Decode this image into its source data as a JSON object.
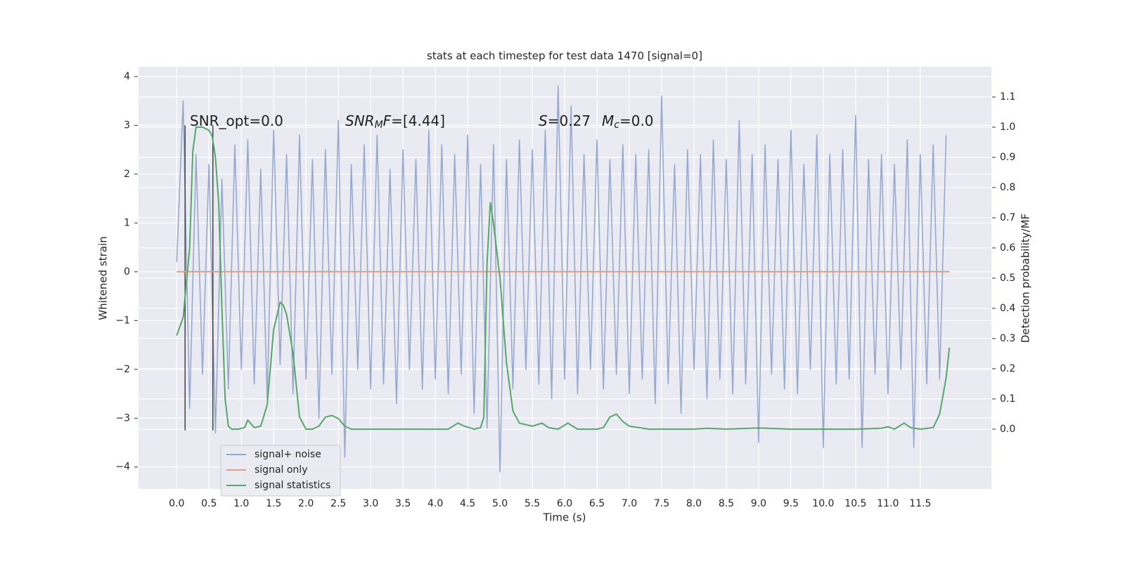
{
  "chart_data": {
    "type": "line",
    "title": "stats at each timestep for test data 1470 [signal=0]",
    "x_label": "Time (s)",
    "y_label": "Whitened strain",
    "y2_label": "Detection probability/MF",
    "xlim": [
      -0.59,
      12.6
    ],
    "ylim": [
      -4.45,
      4.2
    ],
    "y2lim": [
      -0.198,
      1.2
    ],
    "xticks": [
      {
        "value": 0,
        "label": "0.0"
      },
      0.5,
      {
        "value": 1,
        "label": "1.0"
      },
      1.5,
      {
        "value": 2,
        "label": "2.0"
      },
      2.5,
      {
        "value": 3,
        "label": "3.0"
      },
      3.5,
      {
        "value": 4,
        "label": "4.0"
      },
      4.5,
      {
        "value": 5,
        "label": "5.0"
      },
      5.5,
      {
        "value": 6,
        "label": "6.0"
      },
      6.5,
      {
        "value": 7,
        "label": "7.0"
      },
      7.5,
      {
        "value": 8,
        "label": "8.0"
      },
      8.5,
      {
        "value": 9,
        "label": "9.0"
      },
      9.5,
      {
        "value": 10,
        "label": "10.0"
      },
      10.5,
      {
        "value": 11,
        "label": "11.0"
      },
      11.5
    ],
    "yticks": [
      {
        "value": -4,
        "label": "−4"
      },
      {
        "value": -3,
        "label": "−3"
      },
      {
        "value": -2,
        "label": "−2"
      },
      {
        "value": -1,
        "label": "−1"
      },
      0,
      1,
      2,
      3,
      4
    ],
    "y2ticks": [
      {
        "value": 0,
        "label": "0.0"
      },
      0.1,
      0.2,
      0.3,
      0.4,
      0.5,
      0.6,
      0.7,
      0.8,
      0.9,
      {
        "value": 1,
        "label": "1.0"
      },
      1.1
    ],
    "grid": true,
    "background": "#eaeaf2",
    "legend": "lower left",
    "series": [
      {
        "name": "signal+ noise",
        "color": "#98a9d0",
        "x": [
          0.0,
          0.1,
          0.2,
          0.3,
          0.4,
          0.5,
          0.6,
          0.7,
          0.8,
          0.9,
          1.0,
          1.1,
          1.2,
          1.3,
          1.4,
          1.5,
          1.6,
          1.7,
          1.8,
          1.9,
          2.0,
          2.1,
          2.2,
          2.3,
          2.4,
          2.5,
          2.6,
          2.7,
          2.8,
          2.9,
          3.0,
          3.1,
          3.2,
          3.3,
          3.4,
          3.5,
          3.6,
          3.7,
          3.8,
          3.9,
          4.0,
          4.1,
          4.2,
          4.3,
          4.4,
          4.5,
          4.6,
          4.7,
          4.8,
          4.9,
          5.0,
          5.1,
          5.2,
          5.3,
          5.4,
          5.5,
          5.6,
          5.7,
          5.8,
          5.9,
          6.0,
          6.1,
          6.2,
          6.3,
          6.4,
          6.5,
          6.6,
          6.7,
          6.8,
          6.9,
          7.0,
          7.1,
          7.2,
          7.3,
          7.4,
          7.5,
          7.6,
          7.7,
          7.8,
          7.9,
          8.0,
          8.1,
          8.2,
          8.3,
          8.4,
          8.5,
          8.6,
          8.7,
          8.8,
          8.9,
          9.0,
          9.1,
          9.2,
          9.3,
          9.4,
          9.5,
          9.6,
          9.7,
          9.8,
          9.9,
          10.0,
          10.1,
          10.2,
          10.3,
          10.4,
          10.5,
          10.6,
          10.7,
          10.8,
          10.9,
          11.0,
          11.1,
          11.2,
          11.3,
          11.4,
          11.5,
          11.6,
          11.7,
          11.8,
          11.9
        ],
        "values": [
          0.2,
          3.5,
          -2.8,
          2.4,
          -2.1,
          2.2,
          -3.3,
          1.9,
          -2.4,
          2.6,
          -2.0,
          2.7,
          -2.3,
          2.1,
          -2.6,
          2.9,
          -1.9,
          2.4,
          -2.5,
          2.8,
          -2.2,
          2.3,
          -3.0,
          2.5,
          -2.1,
          3.1,
          -3.8,
          2.2,
          -2.0,
          2.6,
          -2.4,
          2.8,
          -2.3,
          2.1,
          -2.7,
          2.5,
          -2.0,
          2.3,
          -2.4,
          2.9,
          -2.2,
          2.6,
          -2.5,
          2.4,
          -2.1,
          2.8,
          -2.9,
          2.2,
          -3.2,
          2.6,
          -4.1,
          2.3,
          -2.4,
          2.7,
          -2.0,
          2.5,
          -2.3,
          2.9,
          -2.6,
          3.8,
          -2.2,
          3.4,
          -2.5,
          2.4,
          -2.0,
          2.7,
          -2.4,
          2.3,
          -2.1,
          2.6,
          -2.5,
          2.4,
          -2.2,
          2.5,
          -2.7,
          3.6,
          -2.3,
          2.2,
          -2.9,
          2.5,
          -2.0,
          2.4,
          -2.6,
          2.7,
          -2.2,
          2.3,
          -2.5,
          3.1,
          -2.3,
          2.4,
          -3.5,
          2.6,
          -2.1,
          2.3,
          -2.4,
          2.9,
          -2.5,
          2.2,
          -2.0,
          2.8,
          -3.6,
          2.4,
          -2.3,
          2.5,
          -2.2,
          3.2,
          -3.6,
          2.3,
          -2.1,
          2.4,
          -2.5,
          2.2,
          -2.0,
          2.7,
          -3.6,
          2.4,
          -2.3,
          2.6,
          -2.2,
          2.8
        ]
      },
      {
        "name": "signal only",
        "color": "#e0a080",
        "x": [
          0.0,
          11.95
        ],
        "values": [
          0,
          0
        ]
      },
      {
        "name": "signal statistics",
        "color": "#55a868",
        "axis": "y2",
        "x": [
          0.0,
          0.1,
          0.2,
          0.25,
          0.3,
          0.4,
          0.5,
          0.55,
          0.6,
          0.65,
          0.7,
          0.75,
          0.8,
          0.85,
          0.95,
          1.05,
          1.1,
          1.2,
          1.3,
          1.4,
          1.5,
          1.6,
          1.65,
          1.7,
          1.8,
          1.9,
          2.0,
          2.1,
          2.2,
          2.3,
          2.4,
          2.5,
          2.6,
          2.7,
          2.8,
          3.0,
          3.5,
          4.0,
          4.2,
          4.35,
          4.45,
          4.6,
          4.7,
          4.75,
          4.8,
          4.85,
          4.9,
          5.0,
          5.1,
          5.2,
          5.3,
          5.5,
          5.65,
          5.75,
          5.9,
          6.05,
          6.2,
          6.5,
          6.6,
          6.7,
          6.8,
          6.9,
          7.0,
          7.3,
          8.0,
          8.2,
          8.5,
          9.0,
          9.5,
          10.0,
          10.5,
          10.9,
          11.0,
          11.1,
          11.25,
          11.35,
          11.5,
          11.7,
          11.8,
          11.9,
          11.95
        ],
        "values": [
          0.31,
          0.37,
          0.6,
          0.92,
          1.0,
          1.0,
          0.99,
          0.97,
          0.9,
          0.75,
          0.4,
          0.1,
          0.01,
          0.0,
          0.0,
          0.005,
          0.03,
          0.005,
          0.01,
          0.08,
          0.33,
          0.42,
          0.41,
          0.38,
          0.25,
          0.04,
          0.0,
          0.0,
          0.01,
          0.04,
          0.045,
          0.035,
          0.01,
          0.0,
          0.0,
          0.0,
          0.0,
          0.0,
          0.0,
          0.02,
          0.01,
          0.0,
          0.005,
          0.04,
          0.55,
          0.75,
          0.68,
          0.5,
          0.22,
          0.06,
          0.02,
          0.01,
          0.02,
          0.005,
          0.0,
          0.02,
          0.0,
          0.0,
          0.005,
          0.04,
          0.05,
          0.025,
          0.01,
          0.0,
          0.0,
          0.003,
          0.0,
          0.004,
          0.0,
          0.0,
          0.0,
          0.003,
          0.008,
          0.0,
          0.02,
          0.005,
          0.0,
          0.005,
          0.05,
          0.17,
          0.27
        ]
      }
    ],
    "vlines": {
      "x": [
        0.13,
        0.56
      ],
      "ymin": -3.25,
      "ymax": 3.0,
      "color": "#444444"
    },
    "annotations": [
      [
        {
          "text": "SNR_opt=0.0"
        }
      ],
      [
        {
          "text": "SNR",
          "style": "italic"
        },
        {
          "text": "M",
          "style": "sub"
        },
        {
          "text": "F",
          "style": "italic"
        },
        {
          "text": "=[4.44]"
        }
      ],
      [
        {
          "text": "S",
          "style": "italic"
        },
        {
          "text": "=0.27"
        },
        {
          "text": "M",
          "style": "italic"
        },
        {
          "text": "c",
          "style": "sub"
        },
        {
          "text": "=0.0"
        }
      ]
    ]
  }
}
